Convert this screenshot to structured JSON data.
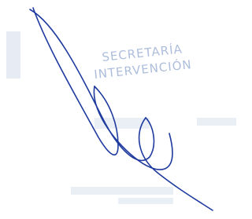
{
  "stamp": {
    "line1": "SECRETARÍA",
    "line2": "INTERVENCIÓN"
  }
}
